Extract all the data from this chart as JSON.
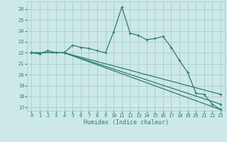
{
  "xlabel": "Humidex (Indice chaleur)",
  "background_color": "#cce8e8",
  "grid_color": "#aacccc",
  "line_color": "#2e7d6e",
  "xlim": [
    -0.5,
    23.5
  ],
  "ylim": [
    16.7,
    26.7
  ],
  "yticks": [
    17,
    18,
    19,
    20,
    21,
    22,
    23,
    24,
    25,
    26
  ],
  "xticks": [
    0,
    1,
    2,
    3,
    4,
    5,
    6,
    7,
    8,
    9,
    10,
    11,
    12,
    13,
    14,
    15,
    16,
    17,
    18,
    19,
    20,
    21,
    22,
    23
  ],
  "line1_x": [
    0,
    1,
    2,
    3,
    4,
    5,
    6,
    7,
    8,
    9,
    10,
    11,
    12,
    13,
    14,
    15,
    16,
    17,
    18,
    19,
    20,
    21,
    22,
    23
  ],
  "line1_y": [
    22.0,
    21.9,
    22.2,
    22.0,
    22.0,
    22.7,
    22.5,
    22.4,
    22.2,
    22.0,
    23.9,
    26.2,
    23.8,
    23.6,
    23.2,
    23.3,
    23.5,
    22.5,
    21.3,
    20.2,
    18.3,
    18.2,
    17.3,
    16.8
  ],
  "line2_x": [
    0,
    4,
    23
  ],
  "line2_y": [
    22.0,
    22.0,
    16.8
  ],
  "line3_x": [
    0,
    4,
    23
  ],
  "line3_y": [
    22.0,
    22.0,
    17.3
  ],
  "line4_x": [
    0,
    4,
    23
  ],
  "line4_y": [
    22.0,
    22.0,
    18.2
  ]
}
